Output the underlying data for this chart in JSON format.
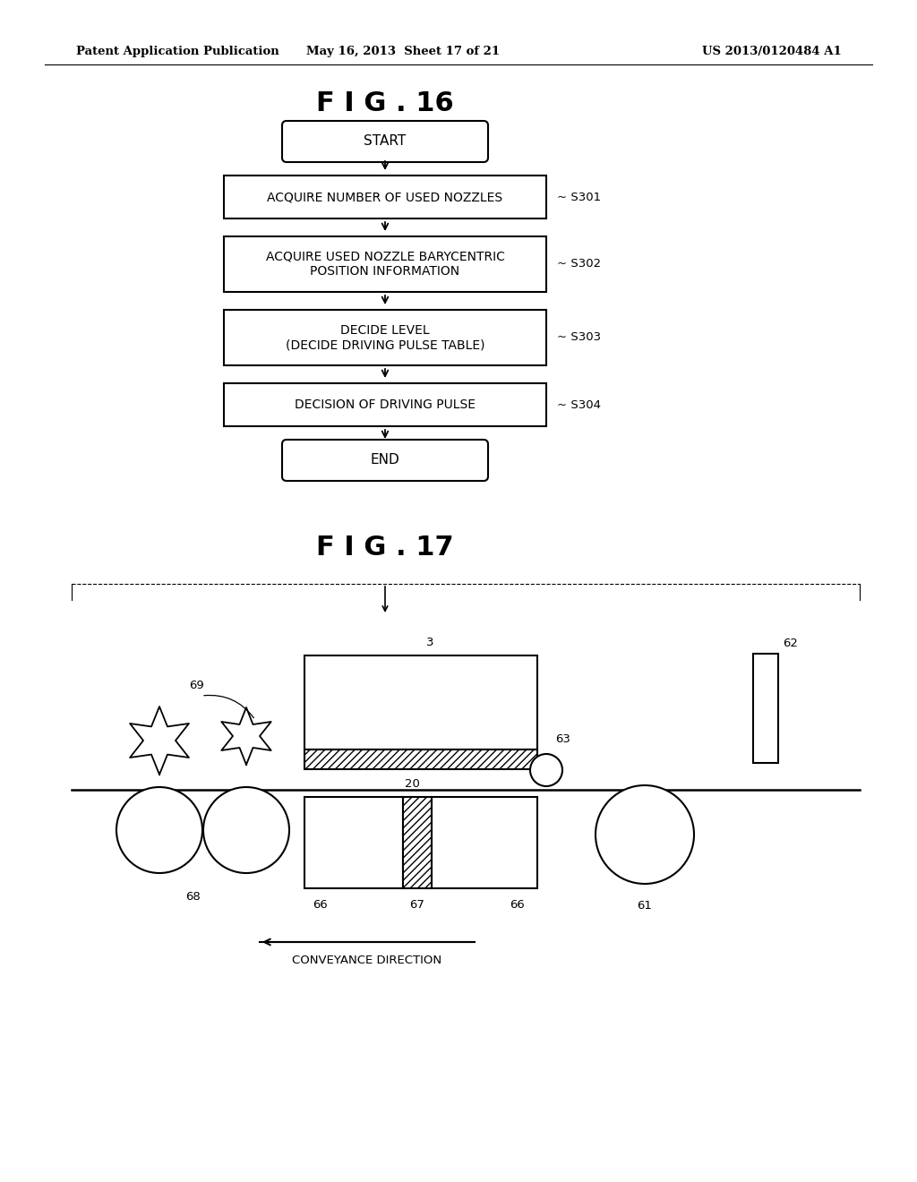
{
  "bg_color": "#ffffff",
  "header_left": "Patent Application Publication",
  "header_center": "May 16, 2013  Sheet 17 of 21",
  "header_right": "US 2013/0120484 A1",
  "fig16_title": "F I G . 16",
  "fig17_title": "F I G . 17",
  "flowchart": {
    "start_text": "START",
    "boxes": [
      {
        "text": "ACQUIRE NUMBER OF USED NOZZLES",
        "label": "S301"
      },
      {
        "text": "ACQUIRE USED NOZZLE BARYCENTRIC\nPOSITION INFORMATION",
        "label": "S302"
      },
      {
        "text": "DECIDE LEVEL\n(DECIDE DRIVING PULSE TABLE)",
        "label": "S303"
      },
      {
        "text": "DECISION OF DRIVING PULSE",
        "label": "S304"
      }
    ],
    "end_text": "END"
  },
  "diagram17": {
    "conveyance_label": "CONVEYANCE DIRECTION"
  }
}
